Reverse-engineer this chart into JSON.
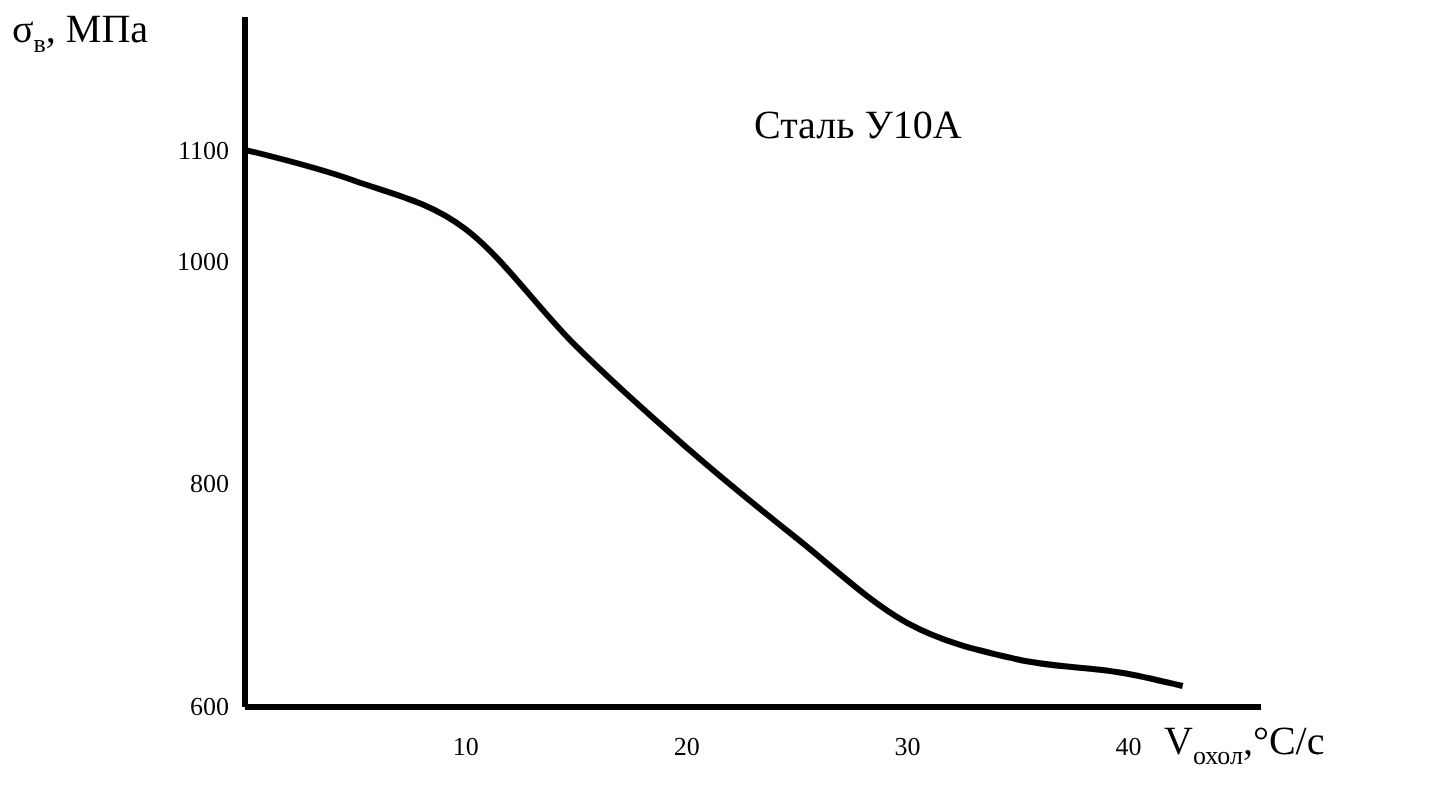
{
  "chart_data": {
    "type": "line",
    "xlabel": "V$_{охол}$,°C/с",
    "ylabel": "σ$_{в}$, МПа",
    "annotations": [
      "Сталь У10А"
    ],
    "x": [
      0,
      5,
      10,
      15,
      20,
      25,
      30,
      35,
      40,
      42.5
    ],
    "series": [
      {
        "color": "#000000",
        "values": [
          1100,
          1072,
          1029,
          924,
          833,
          751,
          675,
          642,
          629,
          618
        ]
      }
    ],
    "xlim": [
      0,
      46
    ],
    "ylim": [
      600,
      1220
    ],
    "xticks": [
      10,
      20,
      30,
      40
    ],
    "yticks": [
      600,
      800,
      1000,
      1100
    ]
  }
}
